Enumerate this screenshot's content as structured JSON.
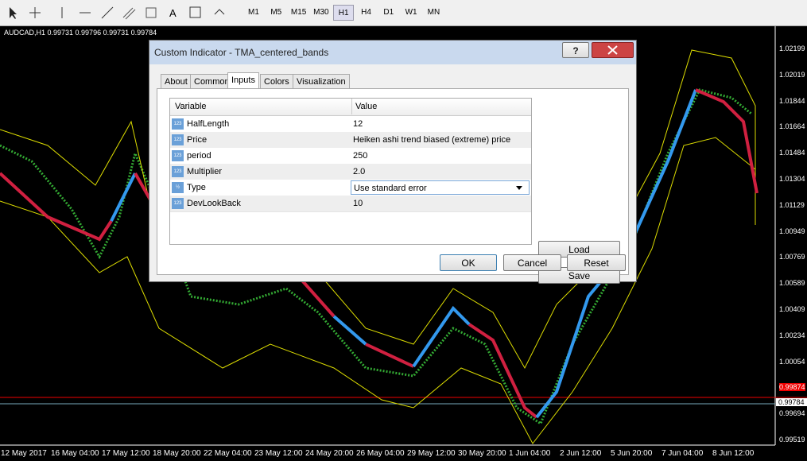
{
  "toolbar": {
    "text_tool": "A",
    "timeframes": [
      "M1",
      "M5",
      "M15",
      "M30",
      "H1",
      "H4",
      "D1",
      "W1",
      "MN"
    ],
    "active_timeframe": "H1"
  },
  "chart": {
    "symbol_info": "AUDCAD,H1  0.99731 0.99796 0.99731 0.99784",
    "price_labels": [
      "1.02199",
      "1.02019",
      "1.01844",
      "1.01664",
      "1.01484",
      "1.01304",
      "1.01129",
      "1.00949",
      "1.00769",
      "1.00589",
      "1.00409",
      "1.00234",
      "1.00054",
      "0.99874",
      "0.99694",
      "0.99519"
    ],
    "current_price": "0.99784",
    "time_labels": [
      "12 May 2017",
      "16 May 04:00",
      "17 May 12:00",
      "18 May 20:00",
      "22 May 04:00",
      "23 May 12:00",
      "24 May 20:00",
      "26 May 04:00",
      "29 May 12:00",
      "30 May 20:00",
      "1 Jun 04:00",
      "2 Jun 12:00",
      "5 Jun 20:00",
      "7 Jun 04:00",
      "8 Jun 12:00"
    ]
  },
  "dialog": {
    "title": "Custom Indicator - TMA_centered_bands",
    "help": "?",
    "tabs": [
      "About",
      "Common",
      "Inputs",
      "Colors",
      "Visualization"
    ],
    "active_tab": "Inputs",
    "table": {
      "header": [
        "Variable",
        "Value"
      ],
      "rows": [
        [
          "HalfLength",
          "12"
        ],
        [
          "Price",
          "Heiken ashi trend biased (extreme) price"
        ],
        [
          "period",
          "250"
        ],
        [
          "Multiplier",
          "2.0"
        ],
        [
          "Type",
          "Use standard error"
        ],
        [
          "DevLookBack",
          "10"
        ]
      ],
      "icons": [
        "123",
        "123",
        "123",
        "123",
        "½",
        "123"
      ]
    },
    "side_buttons": [
      "Load",
      "Save"
    ],
    "buttons": [
      "OK",
      "Cancel",
      "Reset"
    ]
  }
}
